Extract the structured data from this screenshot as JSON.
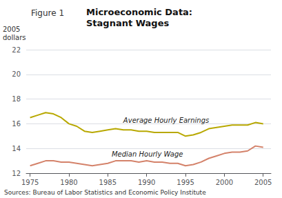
{
  "chart_data": {
    "type": "line",
    "subtitle": "Figure 1",
    "title": "Microeconomic Data:\nStagnant Wages",
    "ylabel": "2005\ndollars",
    "source": "Sources: Bureau of Labor Statistics and Economic Policy Institute",
    "x": [
      1975,
      1976,
      1977,
      1978,
      1979,
      1980,
      1981,
      1982,
      1983,
      1984,
      1985,
      1986,
      1987,
      1988,
      1989,
      1990,
      1991,
      1992,
      1993,
      1994,
      1995,
      1996,
      1997,
      1998,
      1999,
      2000,
      2001,
      2002,
      2003,
      2004,
      2005
    ],
    "series": [
      {
        "color": "#b8a800",
        "values": [
          16.5,
          16.7,
          16.9,
          16.8,
          16.5,
          16.0,
          15.8,
          15.4,
          15.3,
          15.4,
          15.5,
          15.6,
          15.5,
          15.5,
          15.4,
          15.4,
          15.3,
          15.3,
          15.3,
          15.3,
          15.0,
          15.1,
          15.3,
          15.6,
          15.7,
          15.8,
          15.9,
          15.9,
          15.9,
          16.1,
          16.0
        ]
      },
      {
        "color": "#d4826a",
        "values": [
          12.6,
          12.8,
          13.0,
          13.0,
          12.9,
          12.9,
          12.8,
          12.7,
          12.6,
          12.7,
          12.8,
          13.0,
          13.0,
          13.0,
          12.9,
          13.0,
          12.9,
          12.9,
          12.8,
          12.8,
          12.6,
          12.7,
          12.9,
          13.2,
          13.4,
          13.6,
          13.7,
          13.7,
          13.8,
          14.2,
          14.1
        ]
      }
    ],
    "annotations": [
      {
        "text": "Average Hourly Earnings",
        "x": 1987.0,
        "y": 16.3
      },
      {
        "text": "Median Hourly Wage",
        "x": 1985.5,
        "y": 13.55
      }
    ],
    "xlim": [
      1974.5,
      2006.0
    ],
    "xticks": [
      1975,
      1980,
      1985,
      1990,
      1995,
      2000,
      2005
    ],
    "ylim": [
      12,
      22
    ],
    "yticks": [
      12,
      14,
      16,
      18,
      20,
      22
    ],
    "grid": true
  }
}
